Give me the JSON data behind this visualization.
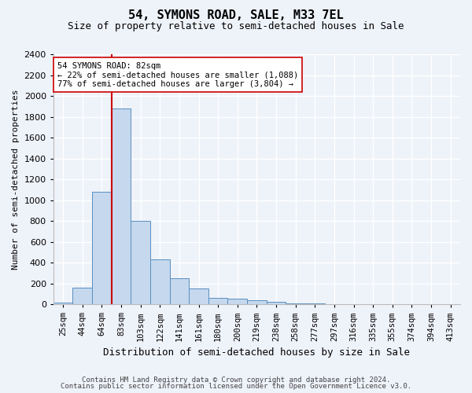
{
  "title1": "54, SYMONS ROAD, SALE, M33 7EL",
  "title2": "Size of property relative to semi-detached houses in Sale",
  "xlabel": "Distribution of semi-detached houses by size in Sale",
  "ylabel": "Number of semi-detached properties",
  "bin_labels": [
    "25sqm",
    "44sqm",
    "64sqm",
    "83sqm",
    "103sqm",
    "122sqm",
    "141sqm",
    "161sqm",
    "180sqm",
    "200sqm",
    "219sqm",
    "238sqm",
    "258sqm",
    "277sqm",
    "297sqm",
    "316sqm",
    "335sqm",
    "355sqm",
    "374sqm",
    "394sqm",
    "413sqm"
  ],
  "bar_values": [
    15,
    160,
    1080,
    1880,
    800,
    430,
    250,
    150,
    65,
    55,
    35,
    20,
    5,
    5,
    2,
    2,
    0,
    0,
    0,
    0,
    0
  ],
  "bar_color": "#c5d8ee",
  "bar_edge_color": "#5a8fc0",
  "vline_bin_index": 3,
  "vline_color": "#cc0000",
  "annotation_text_line1": "54 SYMONS ROAD: 82sqm",
  "annotation_text_line2": "← 22% of semi-detached houses are smaller (1,088)",
  "annotation_text_line3": "77% of semi-detached houses are larger (3,804) →",
  "annotation_box_edge": "#cc0000",
  "ylim": [
    0,
    2400
  ],
  "yticks": [
    0,
    200,
    400,
    600,
    800,
    1000,
    1200,
    1400,
    1600,
    1800,
    2000,
    2200,
    2400
  ],
  "footer1": "Contains HM Land Registry data © Crown copyright and database right 2024.",
  "footer2": "Contains public sector information licensed under the Open Government Licence v3.0.",
  "background_color": "#eef2f9",
  "grid_color": "#ffffff",
  "title1_fontsize": 11,
  "title2_fontsize": 9,
  "ylabel_fontsize": 8,
  "xlabel_fontsize": 9,
  "tick_fontsize": 8,
  "xtick_fontsize": 7.5,
  "footer_fontsize": 6.5
}
